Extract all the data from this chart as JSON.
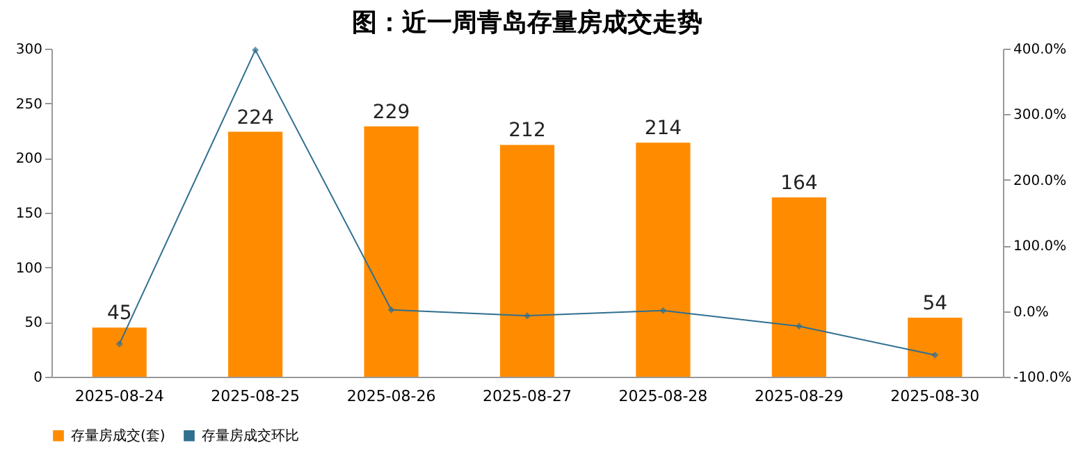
{
  "chart_data": {
    "type": "bar",
    "title": "图：近一周青岛存量房成交走势",
    "categories": [
      "2025-08-24",
      "2025-08-25",
      "2025-08-26",
      "2025-08-27",
      "2025-08-28",
      "2025-08-29",
      "2025-08-30"
    ],
    "series": [
      {
        "name": "存量房成交(套)",
        "color": "#ff8c00",
        "values": [
          45,
          224,
          229,
          212,
          214,
          164,
          54
        ],
        "value_labels": [
          "45",
          "224",
          "229",
          "212",
          "214",
          "164",
          "54"
        ]
      },
      {
        "name": "存量房成交环比",
        "type": "line",
        "axis": "y2",
        "color": "#2f6f8f",
        "marker": "diamond",
        "line_style": "solid",
        "values": [
          -50,
          398,
          2,
          -7,
          1,
          -23,
          -67
        ]
      }
    ],
    "ylim": [
      0,
      300
    ],
    "yticks": [
      0,
      50,
      100,
      150,
      200,
      250,
      300
    ],
    "y2lim": [
      -100,
      400
    ],
    "y2ticks": [
      {
        "value": -100,
        "label": "-100.0%"
      },
      {
        "value": 0,
        "label": "0.0%"
      },
      {
        "value": 100,
        "label": "100.0%"
      },
      {
        "value": 200,
        "label": "200.0%"
      },
      {
        "value": 300,
        "label": "300.0%"
      },
      {
        "value": 400,
        "label": "400.0%"
      }
    ],
    "grid": false,
    "legend": "bottom"
  }
}
